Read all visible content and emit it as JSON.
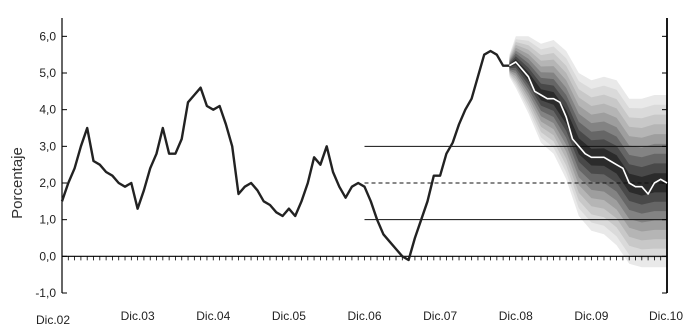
{
  "chart_data": {
    "type": "line",
    "ylabel": "Porcentaje",
    "ylim": [
      -1.0,
      6.5
    ],
    "xlim": [
      "2002-12",
      "2010-12"
    ],
    "y_ticks": [
      "-1,0",
      "0,0",
      "1,0",
      "2,0",
      "3,0",
      "4,0",
      "5,0",
      "6,0"
    ],
    "x_ticks": [
      {
        "date": "2002-12",
        "label": "Dic.02"
      },
      {
        "date": "2003-12",
        "label": "Dic.03"
      },
      {
        "date": "2004-12",
        "label": "Dic.04"
      },
      {
        "date": "2005-12",
        "label": "Dic.05"
      },
      {
        "date": "2006-12",
        "label": "Dic.06"
      },
      {
        "date": "2007-12",
        "label": "Dic.07"
      },
      {
        "date": "2008-12",
        "label": "Dic.08"
      },
      {
        "date": "2009-12",
        "label": "Dic.09"
      },
      {
        "date": "2010-12",
        "label": "Dic.10"
      }
    ],
    "reference_lines": [
      {
        "y": 3.0,
        "style": "solid"
      },
      {
        "y": 2.0,
        "style": "dashed"
      },
      {
        "y": 1.0,
        "style": "solid"
      }
    ],
    "reference_lines_start": "2006-12",
    "grid": false,
    "series": [
      {
        "role": "historical",
        "color": "#222222",
        "points": [
          [
            "2002-12",
            1.5
          ],
          [
            "2003-01",
            2.0
          ],
          [
            "2003-02",
            2.4
          ],
          [
            "2003-03",
            3.0
          ],
          [
            "2003-04",
            3.5
          ],
          [
            "2003-05",
            2.6
          ],
          [
            "2003-06",
            2.5
          ],
          [
            "2003-07",
            2.3
          ],
          [
            "2003-08",
            2.2
          ],
          [
            "2003-09",
            2.0
          ],
          [
            "2003-10",
            1.9
          ],
          [
            "2003-11",
            2.0
          ],
          [
            "2003-12",
            1.3
          ],
          [
            "2004-01",
            1.8
          ],
          [
            "2004-02",
            2.4
          ],
          [
            "2004-03",
            2.8
          ],
          [
            "2004-04",
            3.5
          ],
          [
            "2004-05",
            2.8
          ],
          [
            "2004-06",
            2.8
          ],
          [
            "2004-07",
            3.2
          ],
          [
            "2004-08",
            4.2
          ],
          [
            "2004-09",
            4.4
          ],
          [
            "2004-10",
            4.6
          ],
          [
            "2004-11",
            4.1
          ],
          [
            "2004-12",
            4.0
          ],
          [
            "2005-01",
            4.1
          ],
          [
            "2005-02",
            3.6
          ],
          [
            "2005-03",
            3.0
          ],
          [
            "2005-04",
            1.7
          ],
          [
            "2005-05",
            1.9
          ],
          [
            "2005-06",
            2.0
          ],
          [
            "2005-07",
            1.8
          ],
          [
            "2005-08",
            1.5
          ],
          [
            "2005-09",
            1.4
          ],
          [
            "2005-10",
            1.2
          ],
          [
            "2005-11",
            1.1
          ],
          [
            "2005-12",
            1.3
          ],
          [
            "2006-01",
            1.1
          ],
          [
            "2006-02",
            1.5
          ],
          [
            "2006-03",
            2.0
          ],
          [
            "2006-04",
            2.7
          ],
          [
            "2006-05",
            2.5
          ],
          [
            "2006-06",
            3.0
          ],
          [
            "2006-07",
            2.3
          ],
          [
            "2006-08",
            1.9
          ],
          [
            "2006-09",
            1.6
          ],
          [
            "2006-10",
            1.9
          ],
          [
            "2006-11",
            2.0
          ],
          [
            "2006-12",
            1.9
          ],
          [
            "2007-01",
            1.5
          ],
          [
            "2007-02",
            1.0
          ],
          [
            "2007-03",
            0.6
          ],
          [
            "2007-04",
            0.4
          ],
          [
            "2007-05",
            0.2
          ],
          [
            "2007-06",
            0.0
          ],
          [
            "2007-07",
            -0.1
          ],
          [
            "2007-08",
            0.5
          ],
          [
            "2007-09",
            1.0
          ],
          [
            "2007-10",
            1.5
          ],
          [
            "2007-11",
            2.2
          ],
          [
            "2007-12",
            2.2
          ],
          [
            "2008-01",
            2.8
          ],
          [
            "2008-02",
            3.1
          ],
          [
            "2008-03",
            3.6
          ],
          [
            "2008-04",
            4.0
          ],
          [
            "2008-05",
            4.3
          ],
          [
            "2008-06",
            4.9
          ],
          [
            "2008-07",
            5.5
          ],
          [
            "2008-08",
            5.6
          ],
          [
            "2008-09",
            5.5
          ],
          [
            "2008-10",
            5.2
          ],
          [
            "2008-11",
            5.2
          ]
        ]
      },
      {
        "role": "projection-median",
        "color": "#ffffff",
        "points": [
          [
            "2008-11",
            5.2
          ],
          [
            "2008-12",
            5.3
          ],
          [
            "2009-01",
            5.1
          ],
          [
            "2009-02",
            4.9
          ],
          [
            "2009-03",
            4.5
          ],
          [
            "2009-04",
            4.4
          ],
          [
            "2009-05",
            4.3
          ],
          [
            "2009-06",
            4.3
          ],
          [
            "2009-07",
            4.2
          ],
          [
            "2009-08",
            3.8
          ],
          [
            "2009-09",
            3.2
          ],
          [
            "2009-10",
            3.0
          ],
          [
            "2009-11",
            2.8
          ],
          [
            "2009-12",
            2.7
          ],
          [
            "2010-01",
            2.7
          ],
          [
            "2010-02",
            2.7
          ],
          [
            "2010-03",
            2.6
          ],
          [
            "2010-04",
            2.5
          ],
          [
            "2010-05",
            2.4
          ],
          [
            "2010-06",
            2.0
          ],
          [
            "2010-07",
            1.9
          ],
          [
            "2010-08",
            1.9
          ],
          [
            "2010-09",
            1.7
          ],
          [
            "2010-10",
            2.0
          ],
          [
            "2010-11",
            2.1
          ],
          [
            "2010-12",
            2.0
          ]
        ]
      }
    ],
    "fan_chart": {
      "dates": [
        "2008-11",
        "2008-12",
        "2009-02",
        "2009-04",
        "2009-06",
        "2009-08",
        "2009-10",
        "2009-12",
        "2010-02",
        "2010-04",
        "2010-06",
        "2010-08",
        "2010-10",
        "2010-12"
      ],
      "center": [
        5.2,
        5.3,
        4.9,
        4.4,
        4.3,
        3.8,
        3.0,
        2.7,
        2.7,
        2.5,
        2.0,
        1.9,
        2.0,
        2.0
      ],
      "upper_spread": [
        0.3,
        0.7,
        1.1,
        1.4,
        1.6,
        1.8,
        2.0,
        2.1,
        2.2,
        2.3,
        2.3,
        2.4,
        2.4,
        2.4
      ],
      "lower_spread": [
        0.3,
        0.7,
        1.0,
        1.3,
        1.5,
        1.7,
        1.9,
        2.0,
        2.1,
        2.2,
        2.2,
        2.2,
        2.3,
        2.3
      ],
      "shades": [
        "#e9e9e9",
        "#dadada",
        "#c8c8c8",
        "#b5b5b5",
        "#9e9e9e",
        "#838383",
        "#666666",
        "#494949",
        "#2b2b2b"
      ]
    }
  }
}
